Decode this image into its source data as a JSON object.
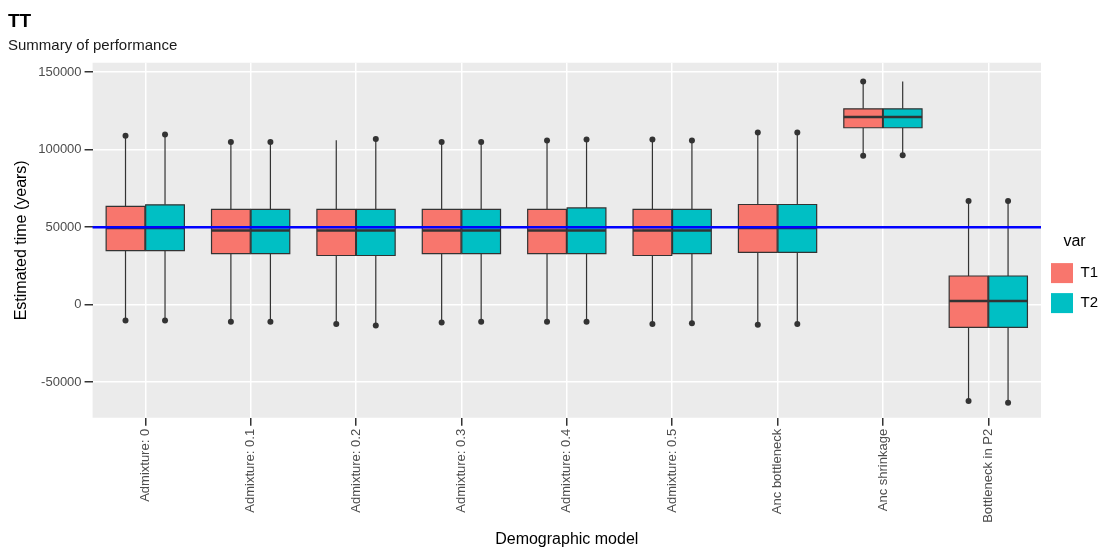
{
  "chart_data": {
    "type": "box",
    "title": "TT",
    "subtitle": "Summary of performance",
    "xlabel": "Demographic model",
    "ylabel": "Estimated time (years)",
    "legend_title": "var",
    "categories": [
      "Admixture: 0",
      "Admixture: 0.1",
      "Admixture: 0.2",
      "Admixture: 0.3",
      "Admixture: 0.4",
      "Admixture: 0.5",
      "Anc bottleneck",
      "Anc shrinkage",
      "Bottleneck in P2"
    ],
    "ylim": [
      -73000,
      156000
    ],
    "yticks": [
      -50000,
      0,
      50000,
      100000,
      150000
    ],
    "grid": true,
    "legend": "right",
    "ref_lines": [
      {
        "axis": "y",
        "value": 50000,
        "color": "#0000ff"
      }
    ],
    "series": [
      {
        "name": "T1",
        "color": "#f8766d",
        "boxes": [
          {
            "low": -10200,
            "q1": 34900,
            "median": 49500,
            "q3": 63400,
            "high": 109000,
            "outliers": [
              109000,
              -10200
            ]
          },
          {
            "low": -11000,
            "q1": 32900,
            "median": 47800,
            "q3": 61500,
            "high": 104900,
            "outliers": [
              104900,
              -11000
            ]
          },
          {
            "low": -12400,
            "q1": 31700,
            "median": 47800,
            "q3": 61500,
            "high": 106100,
            "outliers": [
              -12400
            ]
          },
          {
            "low": -11500,
            "q1": 32900,
            "median": 47800,
            "q3": 61500,
            "high": 104900,
            "outliers": [
              104900,
              -11500
            ]
          },
          {
            "low": -11000,
            "q1": 32900,
            "median": 47800,
            "q3": 61500,
            "high": 105900,
            "outliers": [
              105900,
              -11000
            ]
          },
          {
            "low": -12400,
            "q1": 31700,
            "median": 47800,
            "q3": 61500,
            "high": 106600,
            "outliers": [
              106600,
              -12400
            ]
          },
          {
            "low": -12900,
            "q1": 33700,
            "median": 49500,
            "q3": 64600,
            "high": 111000,
            "outliers": [
              111000,
              -12900
            ]
          },
          {
            "low": 96100,
            "q1": 114100,
            "median": 121000,
            "q3": 126300,
            "high": 143900,
            "outliers": [
              143900,
              96100
            ]
          },
          {
            "low": -62200,
            "q1": -14600,
            "median": 2400,
            "q3": 18500,
            "high": 66800,
            "outliers": [
              66800,
              -62200
            ]
          }
        ]
      },
      {
        "name": "T2",
        "color": "#00bfc4",
        "boxes": [
          {
            "low": -10200,
            "q1": 34900,
            "median": 49500,
            "q3": 64400,
            "high": 109800,
            "outliers": [
              109800,
              -10200
            ]
          },
          {
            "low": -11000,
            "q1": 32900,
            "median": 47800,
            "q3": 61500,
            "high": 104900,
            "outliers": [
              104900,
              -11000
            ]
          },
          {
            "low": -13400,
            "q1": 31700,
            "median": 47800,
            "q3": 61500,
            "high": 106800,
            "outliers": [
              106800,
              -13400
            ]
          },
          {
            "low": -11000,
            "q1": 32900,
            "median": 47800,
            "q3": 61500,
            "high": 104900,
            "outliers": [
              104900,
              -11000
            ]
          },
          {
            "low": -11000,
            "q1": 32900,
            "median": 47800,
            "q3": 62400,
            "high": 106600,
            "outliers": [
              106600,
              -11000
            ]
          },
          {
            "low": -12000,
            "q1": 32900,
            "median": 47800,
            "q3": 61500,
            "high": 105900,
            "outliers": [
              105900,
              -12000
            ]
          },
          {
            "low": -12400,
            "q1": 33700,
            "median": 49500,
            "q3": 64600,
            "high": 111000,
            "outliers": [
              111000,
              -12400
            ]
          },
          {
            "low": 96300,
            "q1": 114100,
            "median": 121000,
            "q3": 126300,
            "high": 143900,
            "outliers": [
              96300
            ]
          },
          {
            "low": -63200,
            "q1": -14600,
            "median": 2400,
            "q3": 18500,
            "high": 66800,
            "outliers": [
              66800,
              -63200
            ]
          }
        ]
      }
    ]
  }
}
